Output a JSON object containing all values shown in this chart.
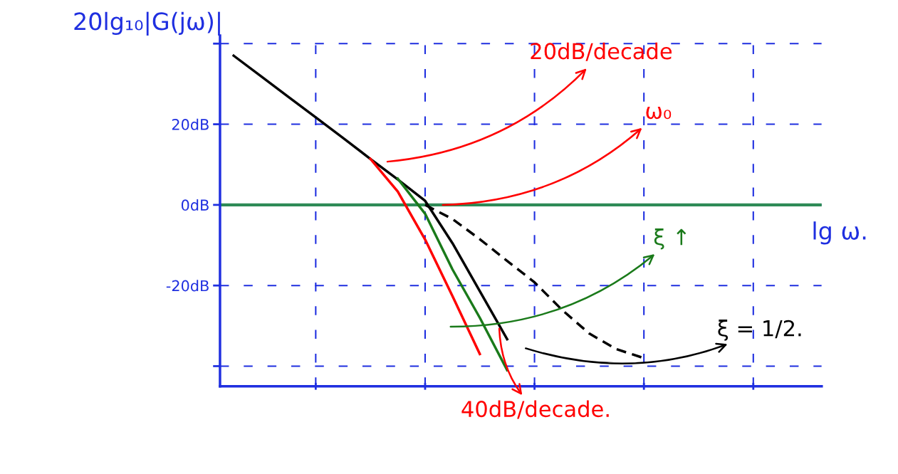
{
  "chart_data": {
    "type": "line",
    "ylabel": "20lg₁₀|G(jω)|",
    "xlabel": "lg ω.",
    "categories": [
      null,
      null,
      null,
      null,
      null,
      null,
      null,
      null,
      null,
      null,
      null,
      null,
      null,
      null,
      null,
      null,
      null,
      null,
      null,
      null,
      null,
      null
    ],
    "ylim": [
      -45,
      42
    ],
    "yticks": [
      {
        "value": -40,
        "label": null
      },
      {
        "value": -20,
        "label": "-20dB"
      },
      {
        "value": 0,
        "label": "0dB"
      },
      {
        "value": 20,
        "label": "20dB"
      },
      {
        "value": 40,
        "label": null
      }
    ],
    "grid": true,
    "tick_labels": "y",
    "series": [
      {
        "color": "#000000",
        "values": [
          37,
          31.9,
          26.8,
          21.7,
          16.6,
          11.4,
          6.3,
          1,
          -9.5,
          -21.4,
          -33.3,
          null,
          null,
          null,
          null,
          null,
          null,
          null,
          null,
          null,
          null,
          null
        ]
      },
      {
        "color": "#ff0000",
        "values": [
          null,
          null,
          null,
          null,
          null,
          11.4,
          3.3,
          -8.6,
          -22.6,
          -37,
          null,
          null,
          null,
          null,
          null,
          null,
          null,
          null,
          null,
          null,
          null,
          null
        ]
      },
      {
        "color": "#1a7a1a",
        "values": [
          null,
          null,
          null,
          null,
          null,
          null,
          6.5,
          -2.2,
          -16,
          -28,
          -41,
          null,
          null,
          null,
          null,
          null,
          null,
          null,
          null,
          null,
          null,
          null
        ]
      },
      {
        "color": "#000000",
        "line_style": "dashed",
        "values": [
          null,
          null,
          null,
          null,
          null,
          null,
          null,
          0,
          -3.5,
          -8.5,
          -13.9,
          -19.2,
          -26,
          -31.9,
          -35.8,
          -38,
          null,
          null,
          null,
          null,
          null,
          null
        ]
      }
    ],
    "ref_lines": [
      {
        "axis": "y",
        "value": 0,
        "color": "#2e8b57"
      }
    ],
    "annotations": [
      "20dB/decade",
      "ω₀",
      "ξ ↑",
      "ξ = 1/2.",
      "40dB/decade."
    ]
  }
}
